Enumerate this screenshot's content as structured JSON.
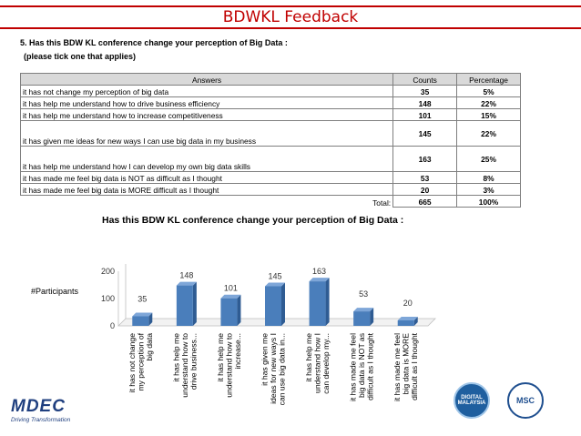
{
  "header": {
    "title": "BDWKL Feedback"
  },
  "question": {
    "text": "5. Has this BDW KL conference change your perception of Big Data :",
    "note": "(please tick one that applies)"
  },
  "table": {
    "headers": [
      "Answers",
      "Counts",
      "Percentage"
    ],
    "rows": [
      {
        "answer": "it has not change my perception of big data",
        "count": "35",
        "percentage": "5%"
      },
      {
        "answer": "it has help me understand how to drive business efficiency",
        "count": "148",
        "percentage": "22%"
      },
      {
        "answer": "it has help me understand how to increase competitiveness",
        "count": "101",
        "percentage": "15%"
      },
      {
        "answer": "it has given me ideas for new ways I can use big data in my business",
        "count": "145",
        "percentage": "22%"
      },
      {
        "answer": "it has help me understand how I can develop my own big data skills",
        "count": "163",
        "percentage": "25%"
      },
      {
        "answer": "it has made me feel big data is NOT as difficult as I thought",
        "count": "53",
        "percentage": "8%"
      },
      {
        "answer": "it has made me feel big data is MORE difficult as I thought",
        "count": "20",
        "percentage": "3%"
      }
    ],
    "total": {
      "label": "Total:",
      "count": "665",
      "percentage": "100%"
    }
  },
  "chart_data": {
    "type": "bar",
    "title": "Has this BDW KL conference change your perception of Big Data :",
    "ylabel": "#Participants",
    "xlabel": "",
    "categories": [
      [
        "it has not change",
        "my perception of",
        "big data"
      ],
      [
        "it has help me",
        "understand how to",
        "drive business..."
      ],
      [
        "it has help me",
        "understand how to",
        "increase..."
      ],
      [
        "it has given me",
        "ideas for new ways I",
        "can use big data in..."
      ],
      [
        "it has help me",
        "understand how I",
        "can develop my..."
      ],
      [
        "it has made me feel",
        "big data is NOT as",
        "difficult as I thought"
      ],
      [
        "it has made me feel",
        "big data is MORE",
        "difficult as I thought"
      ]
    ],
    "values": [
      35,
      148,
      101,
      145,
      163,
      53,
      20
    ],
    "ylim": [
      0,
      200
    ],
    "yticks": [
      0,
      100,
      200
    ],
    "bar_color": "#4a7ebb",
    "bar_side_color": "#2f5c93",
    "bar_top_color": "#7ea6d8",
    "grid": false,
    "legend": "none"
  },
  "footer": {
    "mdec_logo": "MDEC",
    "mdec_tagline": "Driving Transformation",
    "seal_digital": "DIGITAL MALAYSIA",
    "seal_msc": "MSC"
  },
  "colors": {
    "accent": "#c00000",
    "header_fill": "#d9d9d9"
  }
}
